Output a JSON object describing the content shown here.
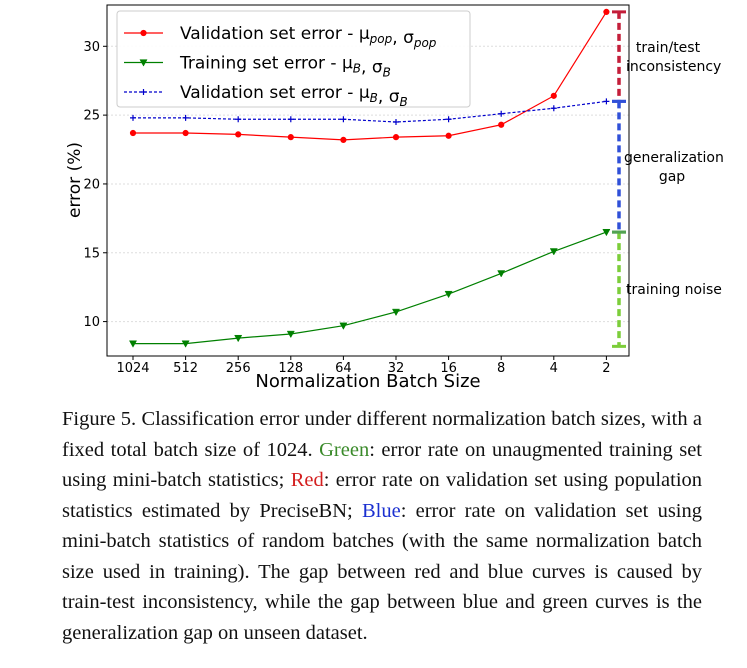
{
  "chart_data": {
    "type": "line",
    "xlabel": "Normalization Batch Size",
    "ylabel": "error (%)",
    "categories": [
      "1024",
      "512",
      "256",
      "128",
      "64",
      "32",
      "16",
      "8",
      "4",
      "2"
    ],
    "yticks": [
      10,
      15,
      20,
      25,
      30
    ],
    "ylim": [
      7.5,
      33
    ],
    "series": [
      {
        "name": "Validation set error - μ_pop, σ_pop",
        "color": "#ff0000",
        "marker": "circle",
        "dash": "solid",
        "values": [
          23.7,
          23.7,
          23.6,
          23.4,
          23.2,
          23.4,
          23.5,
          24.3,
          26.4,
          32.5
        ]
      },
      {
        "name": "Training set error - μ_B, σ_B",
        "color": "#008000",
        "marker": "triangle-down",
        "dash": "solid",
        "values": [
          8.4,
          8.4,
          8.8,
          9.1,
          9.7,
          10.7,
          12.0,
          13.5,
          15.1,
          16.5
        ]
      },
      {
        "name": "Validation set error - μ_B, σ_B",
        "color": "#0000cc",
        "marker": "plus",
        "dash": "dashed",
        "values": [
          24.8,
          24.8,
          24.7,
          24.7,
          24.7,
          24.5,
          24.7,
          25.1,
          25.5,
          26.0
        ]
      }
    ],
    "legend": {
      "location": "top-left",
      "entries": [
        {
          "prefix": "Validation set error - ",
          "sym1": "μ",
          "sub1": "pop",
          "sym2": "σ",
          "sub2": "pop"
        },
        {
          "prefix": "Training set error - ",
          "sym1": "μ",
          "sub1": "B",
          "sym2": "σ",
          "sub2": "B"
        },
        {
          "prefix": "Validation set error - ",
          "sym1": "μ",
          "sub1": "B",
          "sym2": "σ",
          "sub2": "B"
        }
      ]
    },
    "gaps": [
      {
        "name": "train-test-inconsistency",
        "from": 32.5,
        "to": 26.0,
        "color": "#c41e3a",
        "top_color": "#c41e3a",
        "bottom_color": "#3050d8",
        "labels": [
          "train/test",
          "inconsistency"
        ]
      },
      {
        "name": "generalization-gap",
        "from": 26.0,
        "to": 16.5,
        "color": "#3050d8",
        "top_color": "#3050d8",
        "bottom_color": "#52a352",
        "labels": [
          "generalization",
          "gap"
        ]
      },
      {
        "name": "training-noise",
        "from": 16.5,
        "to": 8.2,
        "color": "#7ccd3a",
        "top_color": "#52a352",
        "bottom_color": "#7ccd3a",
        "labels": [
          "training noise"
        ]
      }
    ]
  },
  "caption": {
    "figure_label": "Figure 5.",
    "intro": "Classification error under different normalization batch sizes, with a fixed total batch size of 1024.",
    "green_label": "Green",
    "green_text": ": error rate on unaugmented training set using mini-batch statistics;",
    "red_label": "Red",
    "red_text": ": error rate on validation set using population statistics estimated by PreciseBN;",
    "blue_label": "Blue",
    "blue_text": ": error rate on validation set using mini-batch statistics of random batches (with the same normalization batch size used in training). The gap between red and blue curves is caused by train-test inconsistency, while the gap between blue and green curves is the generalization gap on unseen dataset."
  }
}
